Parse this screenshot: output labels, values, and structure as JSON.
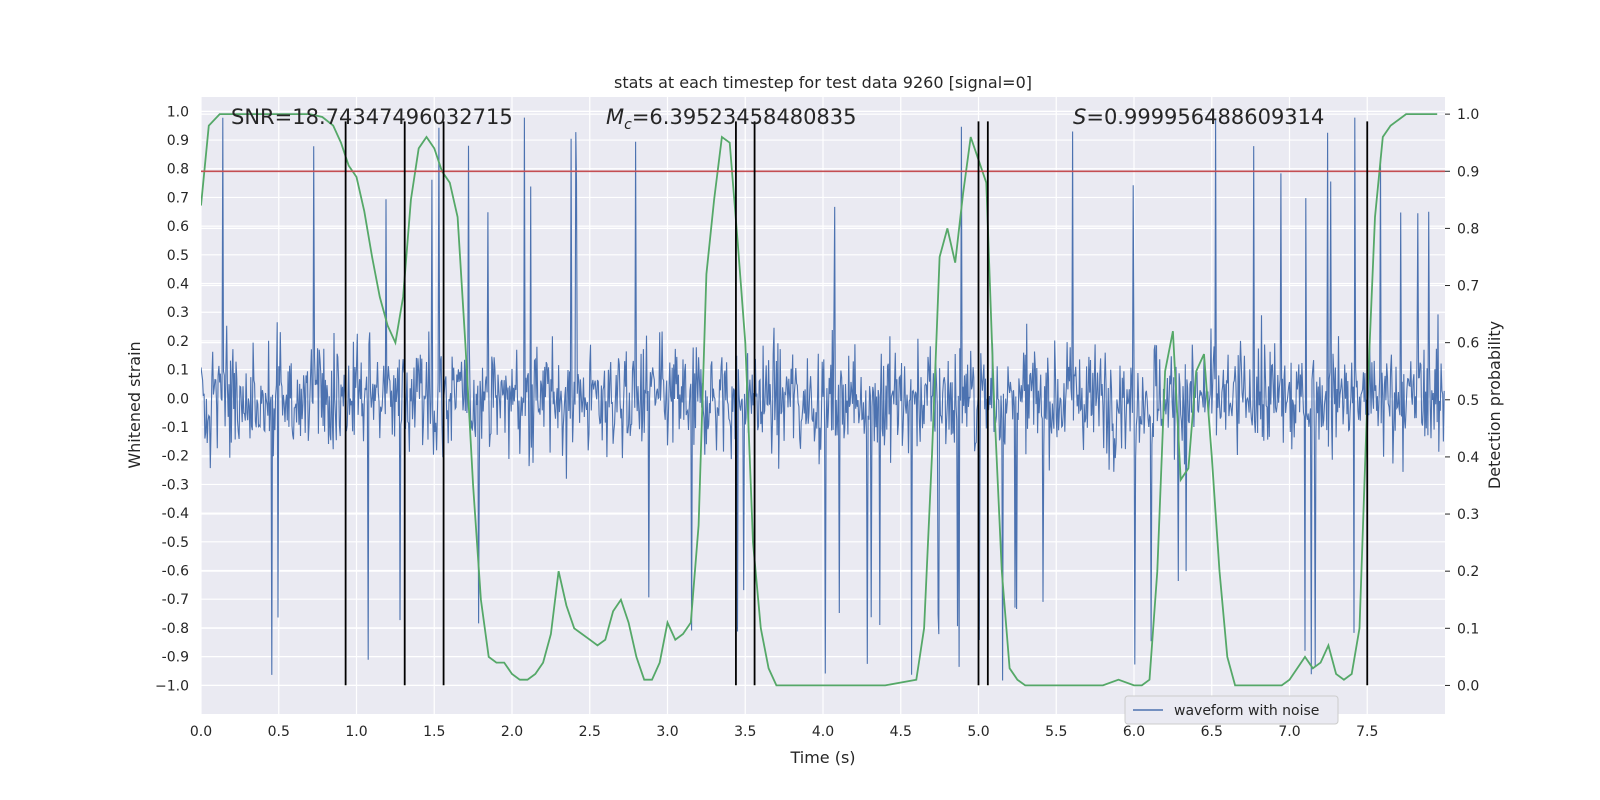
{
  "chart_data": {
    "type": "line",
    "title": "stats at each timestep for test data 9260 [signal=0]",
    "xlabel": "Time (s)",
    "ylabel": "Whitened strain",
    "y2label": "Detection probability",
    "xlim": [
      0.0,
      8.0
    ],
    "ylim": [
      -1.1,
      1.05
    ],
    "y2lim": [
      -0.05,
      1.03
    ],
    "xticks": [
      "0.0",
      "0.5",
      "1.0",
      "1.5",
      "2.0",
      "2.5",
      "3.0",
      "3.5",
      "4.0",
      "4.5",
      "5.0",
      "5.5",
      "6.0",
      "6.5",
      "7.0",
      "7.5"
    ],
    "yticks": [
      "1.0",
      "0.9",
      "0.8",
      "0.7",
      "0.6",
      "0.5",
      "0.4",
      "0.3",
      "0.2",
      "0.1",
      "0.0",
      "-0.1",
      "-0.2",
      "-0.3",
      "-0.4",
      "-0.5",
      "-0.6",
      "-0.7",
      "-0.8",
      "-0.9",
      "−1.0"
    ],
    "y2ticks": [
      "1.0",
      "0.9",
      "0.8",
      "0.7",
      "0.6",
      "0.5",
      "0.4",
      "0.3",
      "0.2",
      "0.1",
      "0.0"
    ],
    "annotations": {
      "snr": "SNR=18.74347496032715",
      "mc_symbol": "M",
      "mc_sub": "c",
      "mc_value": "=6.39523458480835",
      "s_symbol": "S",
      "s_value": "=0.999956488609314"
    },
    "threshold": 0.9,
    "vlines": [
      0.93,
      1.31,
      1.56,
      3.44,
      3.56,
      5.0,
      5.06,
      7.5
    ],
    "vline_range": [
      -1.0,
      1.0
    ],
    "series": [
      {
        "name": "waveform with noise",
        "axis": "left",
        "color": "#4c72b0",
        "envelope": {
          "samples": 1600,
          "duration": 8.0,
          "typical_amplitude": 0.42,
          "peak_amplitude": 0.99
        }
      },
      {
        "name": "detection probability",
        "axis": "right",
        "color": "#55a868",
        "x": [
          0.0,
          0.05,
          0.12,
          0.25,
          0.4,
          0.55,
          0.7,
          0.78,
          0.85,
          0.9,
          0.95,
          1.0,
          1.05,
          1.1,
          1.15,
          1.2,
          1.25,
          1.3,
          1.35,
          1.4,
          1.45,
          1.5,
          1.55,
          1.6,
          1.65,
          1.7,
          1.75,
          1.8,
          1.85,
          1.9,
          1.95,
          2.0,
          2.05,
          2.1,
          2.15,
          2.2,
          2.25,
          2.3,
          2.35,
          2.4,
          2.45,
          2.5,
          2.55,
          2.6,
          2.65,
          2.7,
          2.75,
          2.8,
          2.85,
          2.9,
          2.95,
          3.0,
          3.05,
          3.1,
          3.15,
          3.2,
          3.25,
          3.3,
          3.35,
          3.4,
          3.45,
          3.5,
          3.55,
          3.6,
          3.65,
          3.7,
          3.75,
          3.8,
          3.85,
          3.9,
          4.0,
          4.2,
          4.4,
          4.6,
          4.65,
          4.7,
          4.75,
          4.8,
          4.85,
          4.9,
          4.95,
          5.0,
          5.05,
          5.1,
          5.15,
          5.2,
          5.25,
          5.3,
          5.35,
          5.4,
          5.5,
          5.7,
          5.8,
          5.9,
          6.0,
          6.05,
          6.1,
          6.15,
          6.2,
          6.25,
          6.3,
          6.35,
          6.4,
          6.45,
          6.5,
          6.55,
          6.6,
          6.65,
          6.7,
          6.8,
          6.9,
          6.95,
          7.0,
          7.05,
          7.1,
          7.15,
          7.2,
          7.25,
          7.3,
          7.35,
          7.4,
          7.45,
          7.5,
          7.55,
          7.6,
          7.65,
          7.7,
          7.75,
          7.8,
          7.95
        ],
        "values": [
          0.84,
          0.98,
          1.0,
          1.0,
          1.0,
          1.0,
          1.0,
          0.995,
          0.98,
          0.95,
          0.91,
          0.89,
          0.83,
          0.75,
          0.68,
          0.63,
          0.6,
          0.68,
          0.85,
          0.94,
          0.96,
          0.94,
          0.9,
          0.88,
          0.82,
          0.6,
          0.35,
          0.15,
          0.05,
          0.04,
          0.04,
          0.02,
          0.01,
          0.01,
          0.02,
          0.04,
          0.09,
          0.2,
          0.14,
          0.1,
          0.09,
          0.08,
          0.07,
          0.08,
          0.13,
          0.15,
          0.11,
          0.05,
          0.01,
          0.01,
          0.04,
          0.11,
          0.08,
          0.09,
          0.11,
          0.28,
          0.72,
          0.85,
          0.96,
          0.95,
          0.78,
          0.6,
          0.25,
          0.1,
          0.03,
          0.0,
          0.0,
          0.0,
          0.0,
          0.0,
          0.0,
          0.0,
          0.0,
          0.01,
          0.1,
          0.4,
          0.75,
          0.8,
          0.74,
          0.86,
          0.96,
          0.92,
          0.88,
          0.5,
          0.2,
          0.03,
          0.01,
          0.0,
          0.0,
          0.0,
          0.0,
          0.0,
          0.0,
          0.01,
          0.0,
          0.0,
          0.01,
          0.2,
          0.55,
          0.62,
          0.36,
          0.38,
          0.55,
          0.58,
          0.4,
          0.2,
          0.05,
          0.0,
          0.0,
          0.0,
          0.0,
          0.0,
          0.01,
          0.03,
          0.05,
          0.03,
          0.04,
          0.07,
          0.02,
          0.01,
          0.02,
          0.1,
          0.5,
          0.82,
          0.96,
          0.98,
          0.99,
          1.0,
          1.0,
          1.0
        ]
      },
      {
        "name": "detection threshold",
        "axis": "right",
        "color": "#c44e52",
        "values": [
          0.9
        ]
      }
    ],
    "legend": {
      "entries": [
        "waveform with noise"
      ],
      "position": "lower-right"
    }
  }
}
